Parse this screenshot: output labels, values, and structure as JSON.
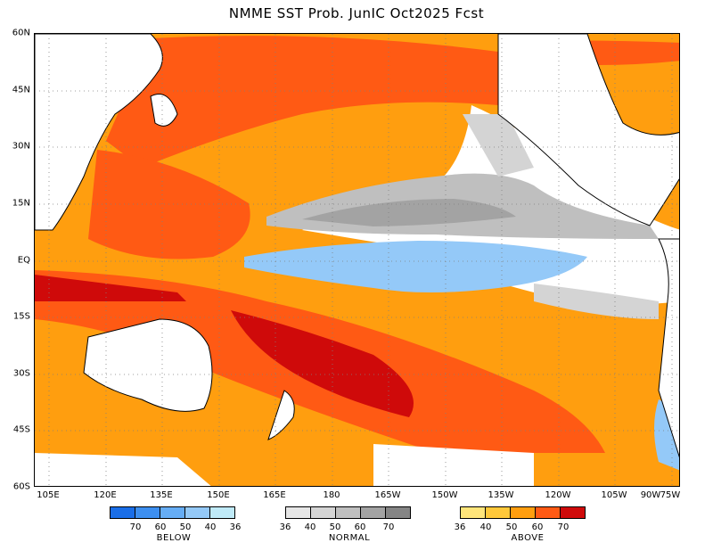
{
  "title": "NMME SST Prob. JunIC  Oct2025 Fcst",
  "lat_labels": [
    "60N",
    "45N",
    "30N",
    "15N",
    "EQ",
    "15S",
    "30S",
    "45S",
    "60S"
  ],
  "lon_labels": [
    "105E",
    "120E",
    "135E",
    "150E",
    "165E",
    "180",
    "165W",
    "150W",
    "135W",
    "120W",
    "105W",
    "90W",
    "75W"
  ],
  "legend": {
    "below": {
      "name": "BELOW",
      "colors": [
        "#1a6ee8",
        "#3d8ff0",
        "#66adf5",
        "#94c9f8",
        "#bfeaf8"
      ],
      "labels": [
        "70",
        "60",
        "50",
        "40",
        "36"
      ]
    },
    "normal": {
      "name": "NORMAL",
      "colors": [
        "#e6e6e6",
        "#d4d4d4",
        "#bfbfbf",
        "#a3a3a3",
        "#858585"
      ],
      "labels": [
        "36",
        "40",
        "50",
        "60",
        "70"
      ]
    },
    "above": {
      "name": "ABOVE",
      "colors": [
        "#ffe57a",
        "#ffc83a",
        "#ff9e0f",
        "#ff5a14",
        "#cf0a0a"
      ],
      "labels": [
        "36",
        "40",
        "50",
        "60",
        "70"
      ]
    }
  }
}
